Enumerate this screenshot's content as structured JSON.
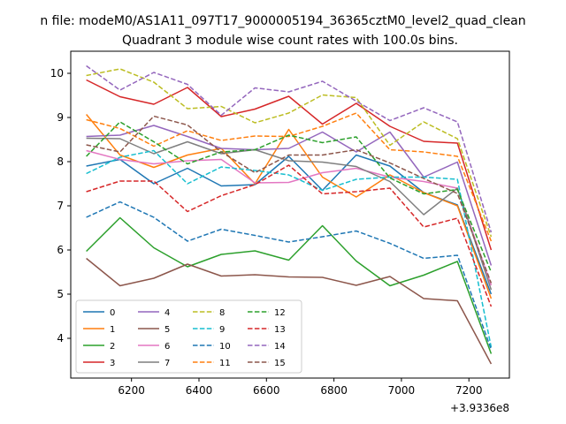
{
  "chart_data": {
    "type": "line",
    "suptitle": "n file: modeM0/AS1A11_097T17_9000005194_36365cztM0_level2_quad_clean",
    "title": "Quadrant 3 module wise count rates with 100.0s bins.",
    "xlabel": "",
    "ylabel": "",
    "x_offset_label": "+3.9336e8",
    "xlim": [
      6020,
      7320
    ],
    "ylim": [
      3.1,
      10.5
    ],
    "xticks": [
      6200,
      6400,
      6600,
      6800,
      7000,
      7200
    ],
    "xtick_labels": [
      "6200",
      "6400",
      "6600",
      "6800",
      "7000",
      "7200"
    ],
    "yticks": [
      4,
      5,
      6,
      7,
      8,
      9,
      10
    ],
    "ytick_labels": [
      "4",
      "5",
      "6",
      "7",
      "8",
      "9",
      "10"
    ],
    "grid": false,
    "legend_position": "lower-left",
    "legend_columns": 4,
    "x": [
      6066,
      6166,
      6266,
      6366,
      6466,
      6566,
      6666,
      6766,
      6866,
      6966,
      7066,
      7166,
      7266
    ],
    "series": [
      {
        "name": "0",
        "color": "#1f77b4",
        "dash": "solid",
        "values": [
          7.9,
          8.05,
          7.5,
          7.85,
          7.45,
          7.48,
          8.12,
          7.35,
          8.15,
          7.9,
          7.3,
          7.02,
          5.0
        ]
      },
      {
        "name": "1",
        "color": "#ff7f0e",
        "dash": "solid",
        "values": [
          9.07,
          8.15,
          7.87,
          8.15,
          8.3,
          7.5,
          8.73,
          7.65,
          7.2,
          7.7,
          7.3,
          7.0,
          4.9
        ]
      },
      {
        "name": "2",
        "color": "#2ca02c",
        "dash": "solid",
        "values": [
          5.97,
          6.73,
          6.05,
          5.62,
          5.9,
          5.98,
          5.77,
          6.55,
          5.75,
          5.19,
          5.43,
          5.74,
          3.65
        ]
      },
      {
        "name": "3",
        "color": "#d62728",
        "dash": "solid",
        "values": [
          9.85,
          9.47,
          9.3,
          9.68,
          9.02,
          9.19,
          9.48,
          8.85,
          9.32,
          8.8,
          8.46,
          8.42,
          6.0
        ]
      },
      {
        "name": "4",
        "color": "#9467bd",
        "dash": "solid",
        "values": [
          8.57,
          8.6,
          8.82,
          8.57,
          8.3,
          8.27,
          8.3,
          8.67,
          8.22,
          8.67,
          7.65,
          7.99,
          5.65
        ]
      },
      {
        "name": "5",
        "color": "#8c564b",
        "dash": "solid",
        "values": [
          5.81,
          5.19,
          5.36,
          5.68,
          5.41,
          5.44,
          5.39,
          5.38,
          5.2,
          5.4,
          4.9,
          4.85,
          3.42
        ]
      },
      {
        "name": "6",
        "color": "#e377c2",
        "dash": "solid",
        "values": [
          8.25,
          8.05,
          7.95,
          8.02,
          8.05,
          7.52,
          7.53,
          7.75,
          7.85,
          7.65,
          7.55,
          7.4,
          5.2
        ]
      },
      {
        "name": "7",
        "color": "#7f7f7f",
        "dash": "solid",
        "values": [
          8.53,
          8.52,
          8.18,
          8.45,
          8.18,
          8.27,
          8.02,
          7.99,
          7.89,
          7.55,
          6.8,
          7.4,
          5.1
        ]
      },
      {
        "name": "8",
        "color": "#bcbd22",
        "dash": "dashed",
        "values": [
          9.95,
          10.1,
          9.8,
          9.2,
          9.25,
          8.88,
          9.1,
          9.51,
          9.45,
          8.37,
          8.9,
          8.52,
          6.3
        ]
      },
      {
        "name": "9",
        "color": "#17becf",
        "dash": "dashed",
        "values": [
          7.73,
          8.1,
          8.25,
          7.5,
          7.88,
          7.8,
          7.7,
          7.35,
          7.6,
          7.65,
          7.65,
          7.6,
          3.8
        ]
      },
      {
        "name": "10",
        "color": "#1f77b4",
        "dash": "dashed",
        "values": [
          6.74,
          7.09,
          6.74,
          6.2,
          6.47,
          6.33,
          6.18,
          6.3,
          6.43,
          6.15,
          5.81,
          5.88,
          3.75
        ]
      },
      {
        "name": "11",
        "color": "#ff7f0e",
        "dash": "dashed",
        "values": [
          8.95,
          8.75,
          8.35,
          8.7,
          8.48,
          8.58,
          8.57,
          8.8,
          9.1,
          8.27,
          8.22,
          8.12,
          6.2
        ]
      },
      {
        "name": "12",
        "color": "#2ca02c",
        "dash": "dashed",
        "values": [
          8.12,
          8.9,
          8.45,
          7.95,
          8.22,
          8.27,
          8.6,
          8.43,
          8.56,
          7.63,
          7.27,
          7.37,
          5.5
        ]
      },
      {
        "name": "13",
        "color": "#d62728",
        "dash": "dashed",
        "values": [
          7.32,
          7.56,
          7.56,
          6.87,
          7.23,
          7.48,
          7.92,
          7.27,
          7.32,
          7.4,
          6.52,
          6.72,
          4.72
        ]
      },
      {
        "name": "14",
        "color": "#9467bd",
        "dash": "dashed",
        "values": [
          10.17,
          9.62,
          10.02,
          9.75,
          9.05,
          9.67,
          9.58,
          9.82,
          9.37,
          8.93,
          9.22,
          8.9,
          6.4
        ]
      },
      {
        "name": "15",
        "color": "#8c564b",
        "dash": "dashed",
        "values": [
          8.38,
          8.22,
          9.03,
          8.83,
          8.22,
          7.75,
          8.15,
          8.15,
          8.27,
          7.97,
          7.62,
          7.28,
          5.25
        ]
      }
    ]
  }
}
